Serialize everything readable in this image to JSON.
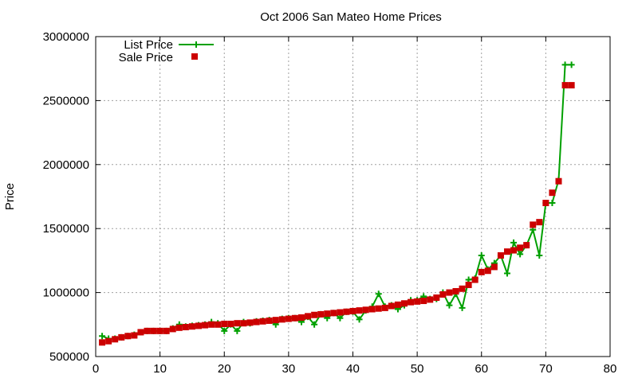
{
  "chart_data": {
    "type": "line",
    "title": "Oct 2006 San Mateo Home Prices",
    "xlabel": "",
    "ylabel": "Price",
    "xlim": [
      0,
      80
    ],
    "ylim": [
      500000,
      3000000
    ],
    "xticks": [
      0,
      10,
      20,
      30,
      40,
      50,
      60,
      70,
      80
    ],
    "yticks": [
      500000,
      1000000,
      1500000,
      2000000,
      2500000,
      3000000
    ],
    "xtick_labels": [
      "0",
      "10",
      "20",
      "30",
      "40",
      "50",
      "60",
      "70",
      "80"
    ],
    "ytick_labels": [
      "500000",
      "1000000",
      "1500000",
      "2000000",
      "2500000",
      "3000000"
    ],
    "grid": true,
    "legend": "top-left",
    "series": [
      {
        "name": "List Price",
        "style": "lines+crosses",
        "color": "#00a000",
        "x": [
          1,
          2,
          3,
          4,
          5,
          6,
          7,
          8,
          9,
          10,
          11,
          12,
          13,
          14,
          15,
          16,
          17,
          18,
          19,
          20,
          21,
          22,
          23,
          24,
          25,
          26,
          27,
          28,
          29,
          30,
          31,
          32,
          33,
          34,
          35,
          36,
          37,
          38,
          39,
          40,
          41,
          42,
          43,
          44,
          45,
          46,
          47,
          48,
          49,
          50,
          51,
          52,
          53,
          54,
          55,
          56,
          57,
          58,
          59,
          60,
          61,
          62,
          63,
          64,
          65,
          66,
          67,
          68,
          69,
          70,
          71,
          72,
          73,
          74
        ],
        "y": [
          660000,
          640000,
          640000,
          650000,
          660000,
          670000,
          690000,
          700000,
          700000,
          700000,
          700000,
          720000,
          750000,
          735000,
          740000,
          745000,
          750000,
          770000,
          760000,
          700000,
          750000,
          700000,
          770000,
          760000,
          775000,
          780000,
          785000,
          750000,
          795000,
          800000,
          800000,
          770000,
          810000,
          750000,
          830000,
          800000,
          840000,
          800000,
          850000,
          850000,
          790000,
          860000,
          890000,
          990000,
          890000,
          900000,
          870000,
          900000,
          940000,
          940000,
          970000,
          950000,
          950000,
          1000000,
          900000,
          990000,
          880000,
          1100000,
          1110000,
          1290000,
          1180000,
          1230000,
          1290000,
          1150000,
          1390000,
          1300000,
          1370000,
          1490000,
          1290000,
          1700000,
          1700000,
          1880000,
          2780000,
          2780000
        ]
      },
      {
        "name": "Sale Price",
        "style": "squares",
        "color": "#cc0000",
        "x": [
          1,
          2,
          3,
          4,
          5,
          6,
          7,
          8,
          9,
          10,
          11,
          12,
          13,
          14,
          15,
          16,
          17,
          18,
          19,
          20,
          21,
          22,
          23,
          24,
          25,
          26,
          27,
          28,
          29,
          30,
          31,
          32,
          33,
          34,
          35,
          36,
          37,
          38,
          39,
          40,
          41,
          42,
          43,
          44,
          45,
          46,
          47,
          48,
          49,
          50,
          51,
          52,
          53,
          54,
          55,
          56,
          57,
          58,
          59,
          60,
          61,
          62,
          63,
          64,
          65,
          66,
          67,
          68,
          69,
          70,
          71,
          72,
          73,
          74
        ],
        "y": [
          610000,
          620000,
          635000,
          650000,
          660000,
          665000,
          690000,
          700000,
          700000,
          700000,
          700000,
          715000,
          725000,
          730000,
          735000,
          740000,
          745000,
          750000,
          750000,
          755000,
          755000,
          760000,
          760000,
          765000,
          770000,
          775000,
          780000,
          785000,
          790000,
          795000,
          800000,
          805000,
          815000,
          825000,
          830000,
          835000,
          840000,
          845000,
          850000,
          855000,
          860000,
          865000,
          870000,
          875000,
          880000,
          895000,
          905000,
          915000,
          925000,
          930000,
          935000,
          945000,
          960000,
          985000,
          1000000,
          1010000,
          1030000,
          1060000,
          1100000,
          1160000,
          1170000,
          1200000,
          1290000,
          1320000,
          1330000,
          1350000,
          1370000,
          1530000,
          1550000,
          1700000,
          1780000,
          1870000,
          2620000,
          2620000
        ]
      }
    ]
  }
}
